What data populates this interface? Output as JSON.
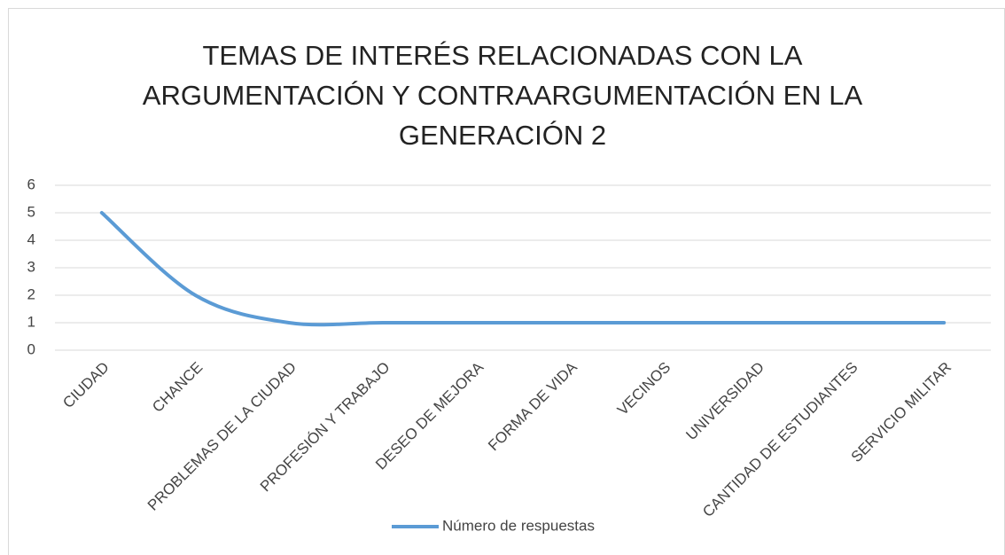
{
  "chart_data": {
    "type": "line",
    "title": "TEMAS DE INTERÉS RELACIONADAS CON LA ARGUMENTACIÓN Y CONTRAARGUMENTACIÓN EN LA GENERACIÓN 2",
    "categories": [
      "CIUDAD",
      "CHANCE",
      "PROBLEMAS DE LA CIUDAD",
      "PROFESIÓN Y TRABAJO",
      "DESEO DE MEJORA",
      "FORMA DE VIDA",
      "VECINOS",
      "UNIVERSIDAD",
      "CANTIDAD DE ESTUDIANTES",
      "SERVICIO MILITAR"
    ],
    "series": [
      {
        "name": "Número de respuestas",
        "color": "#5b9bd5",
        "values": [
          5,
          2,
          1,
          1,
          1,
          1,
          1,
          1,
          1,
          1
        ]
      }
    ],
    "ylim": [
      0,
      6
    ],
    "yticks": [
      0,
      1,
      2,
      3,
      4,
      5,
      6
    ],
    "grid": true,
    "smooth": true,
    "legend": "bottom"
  }
}
